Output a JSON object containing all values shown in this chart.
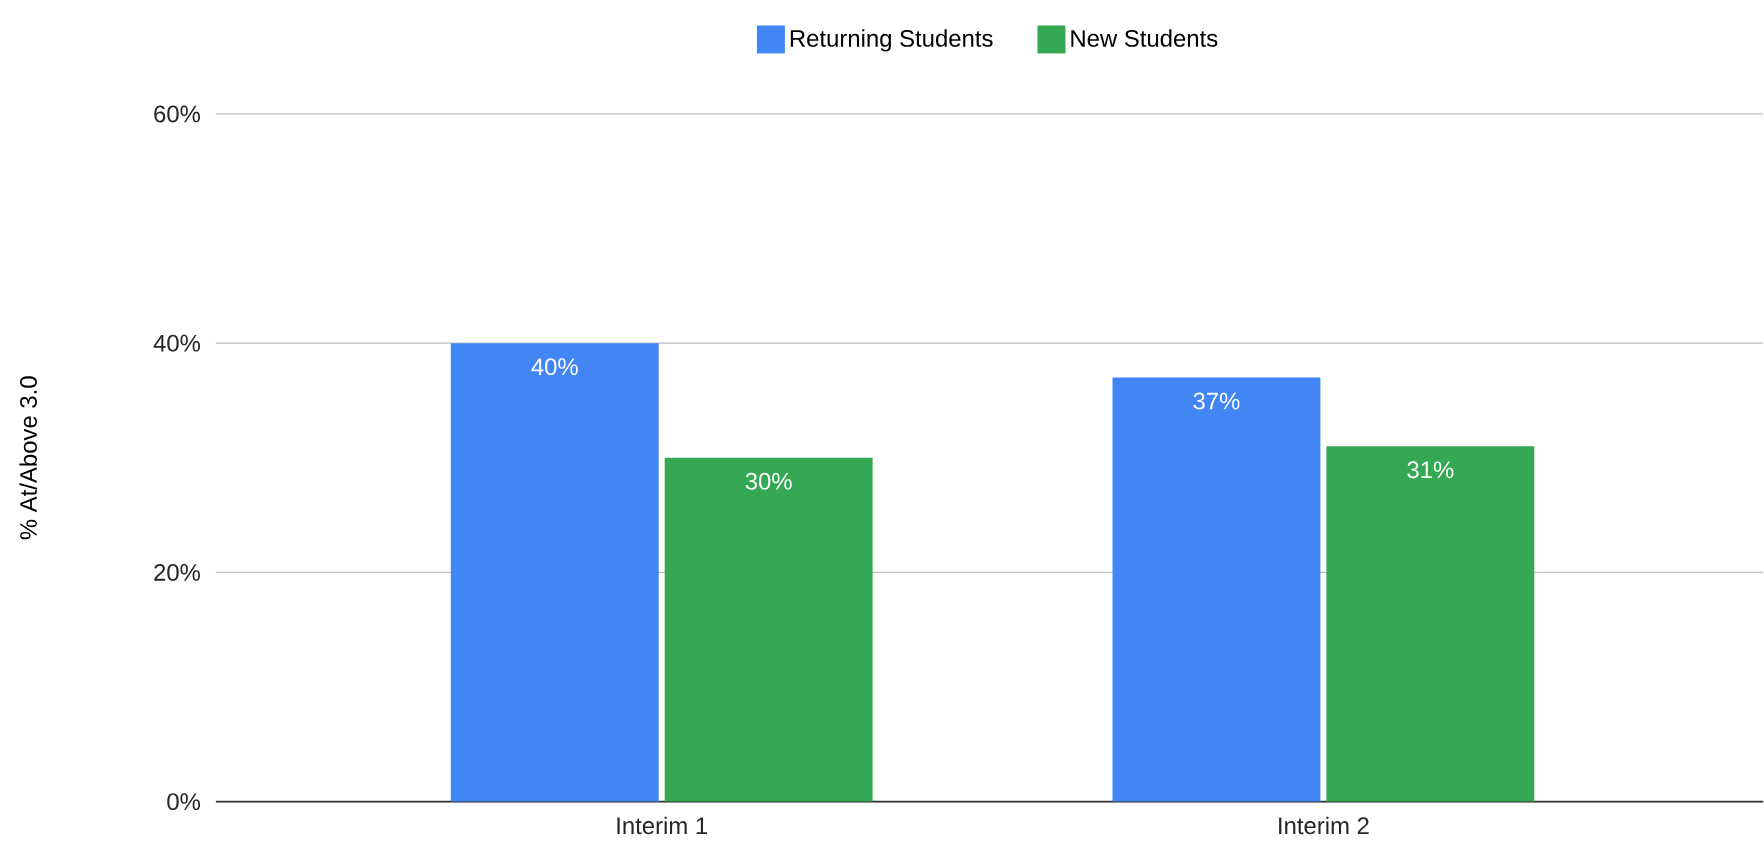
{
  "chart_data": {
    "type": "bar",
    "categories": [
      "Interim 1",
      "Interim 2"
    ],
    "series": [
      {
        "name": "Returning Students",
        "color": "#4285f4",
        "values": [
          40,
          37
        ],
        "value_labels": [
          "40%",
          "37%"
        ]
      },
      {
        "name": "New Students",
        "color": "#34a853",
        "values": [
          30,
          31
        ],
        "value_labels": [
          "30%",
          "31%"
        ]
      }
    ],
    "ylabel": "% At/Above 3.0",
    "ylim": [
      0,
      60
    ],
    "yticks": [
      {
        "value": 0,
        "label": "0%"
      },
      {
        "value": 20,
        "label": "20%"
      },
      {
        "value": 40,
        "label": "40%"
      },
      {
        "value": 60,
        "label": "60%"
      }
    ],
    "grid": "y",
    "legend": "top"
  }
}
